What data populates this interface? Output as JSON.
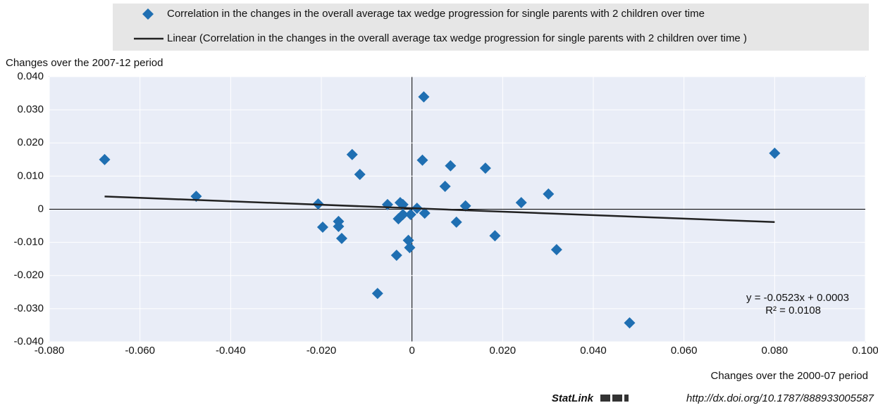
{
  "chart_data": {
    "type": "scatter",
    "x_label": "Changes over the 2000-07 period",
    "y_label": "Changes over the 2007-12 period",
    "xlim": [
      -0.08,
      0.1
    ],
    "ylim": [
      -0.04,
      0.04
    ],
    "xticks": [
      {
        "value": -0.08,
        "label": "-0.080"
      },
      {
        "value": -0.06,
        "label": "-0.060"
      },
      {
        "value": -0.04,
        "label": "-0.040"
      },
      {
        "value": -0.02,
        "label": "-0.020"
      },
      0,
      {
        "value": 0.02,
        "label": "0.020"
      },
      {
        "value": 0.04,
        "label": "0.040"
      },
      {
        "value": 0.06,
        "label": "0.060"
      },
      {
        "value": 0.08,
        "label": "0.080"
      },
      {
        "value": 0.1,
        "label": "0.100"
      }
    ],
    "yticks": [
      {
        "value": -0.04,
        "label": "-0.040"
      },
      {
        "value": -0.03,
        "label": "-0.030"
      },
      {
        "value": -0.02,
        "label": "-0.020"
      },
      {
        "value": -0.01,
        "label": "-0.010"
      },
      0,
      {
        "value": 0.01,
        "label": "0.010"
      },
      {
        "value": 0.02,
        "label": "0.020"
      },
      {
        "value": 0.03,
        "label": "0.030"
      },
      {
        "value": 0.04,
        "label": "0.040"
      }
    ],
    "grid": true,
    "x": [
      -0.0678,
      -0.0476,
      -0.0207,
      -0.0197,
      -0.0162,
      -0.0162,
      -0.0155,
      -0.0132,
      -0.0115,
      -0.0076,
      -0.0054,
      -0.0034,
      -0.003,
      -0.0026,
      -0.002,
      -0.002,
      -0.0008,
      -0.0005,
      -0.0003,
      0.0011,
      0.0023,
      0.0026,
      0.0028,
      0.0073,
      0.0085,
      0.0098,
      0.0118,
      0.0162,
      0.0183,
      0.0241,
      0.0301,
      0.0319,
      0.048,
      0.08
    ],
    "series": [
      {
        "name": "Correlation in the changes in the overall average tax wedge progression for single parents with 2 children over time",
        "color": "#1f6fb2",
        "values": [
          0.015,
          0.0039,
          0.0016,
          -0.0054,
          -0.0037,
          -0.0052,
          -0.0088,
          0.0165,
          0.0105,
          -0.0254,
          0.0014,
          -0.0139,
          -0.0029,
          0.002,
          0.0014,
          -0.0016,
          -0.0094,
          -0.0116,
          -0.0016,
          0.0003,
          0.0148,
          0.0339,
          -0.0012,
          0.0069,
          0.0131,
          -0.0039,
          0.001,
          0.0124,
          -0.008,
          0.002,
          0.0046,
          -0.0122,
          -0.0343,
          0.0169
        ]
      }
    ],
    "trendline": {
      "name": "Linear (Correlation in the changes in the overall average tax wedge progression for single parents with 2 children over time )",
      "color": "#222222",
      "slope": -0.0523,
      "intercept": 0.0003
    },
    "annotations": [
      "y = -0.0523x + 0.0003",
      "R² = 0.0108"
    ]
  },
  "footer": {
    "brand": "StatLink",
    "url": "http://dx.doi.org/10.1787/888933005587"
  }
}
